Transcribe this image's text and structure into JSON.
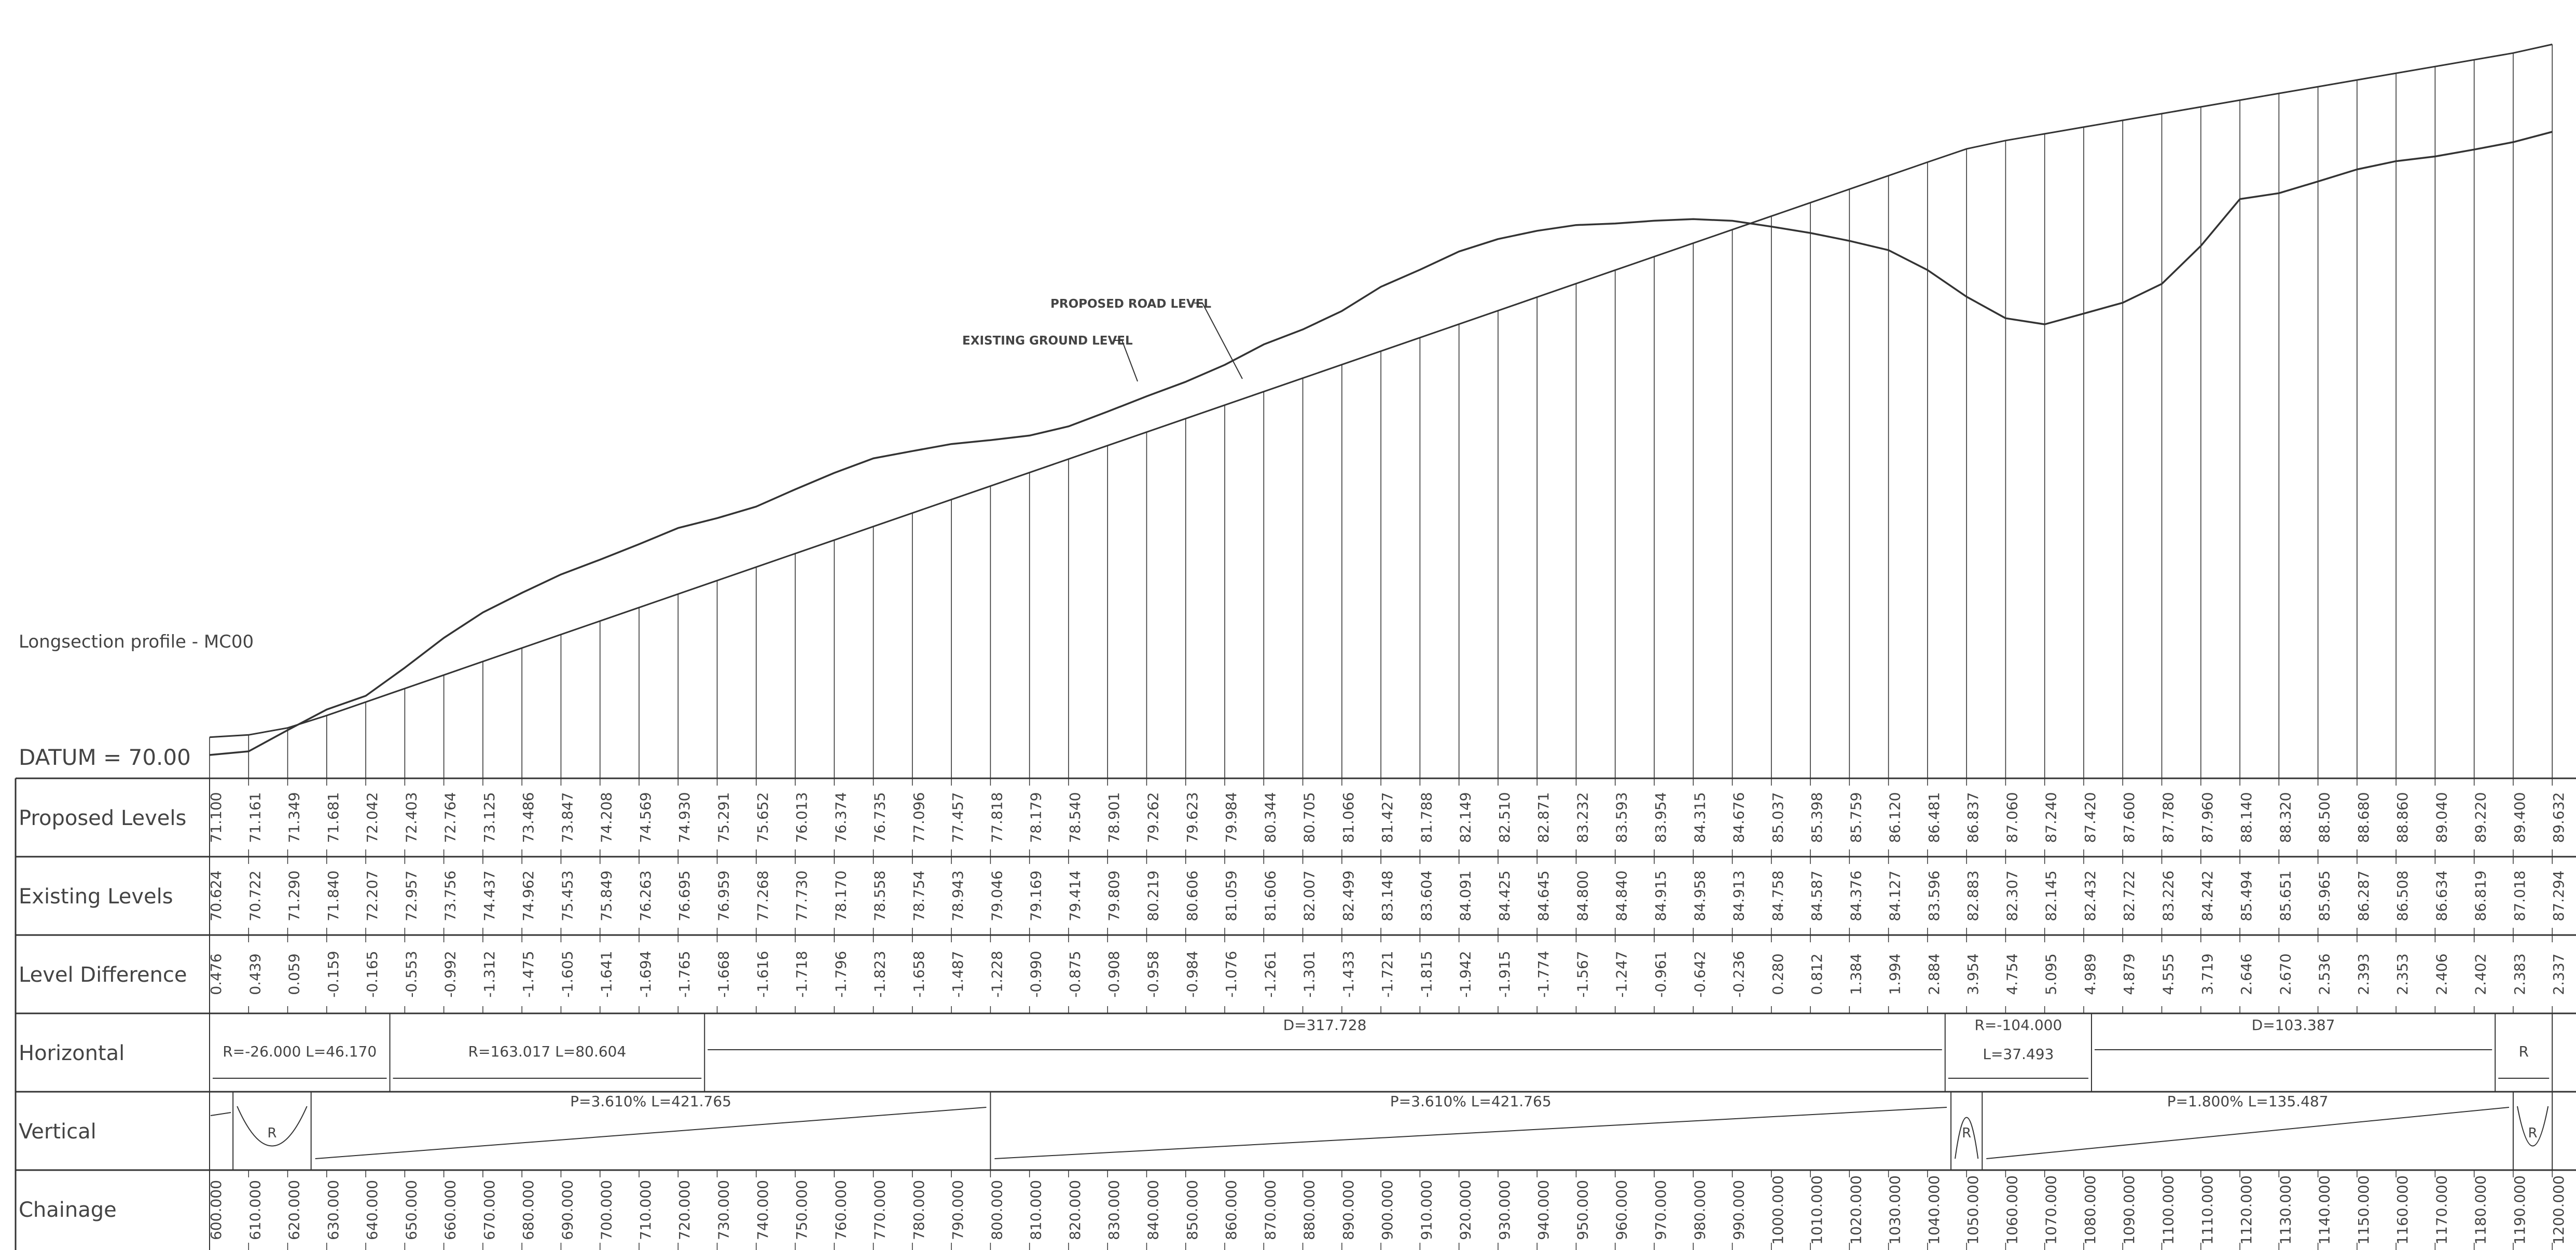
{
  "title": "Longsection profile - MC00",
  "datum_label": "DATUM  =  70.00",
  "annotations": {
    "proposed": "PROPOSED ROAD LEVEL",
    "existing": "EXISTING GROUND LEVEL"
  },
  "rows": {
    "proposed": "Proposed Levels",
    "existing": "Existing Levels",
    "difference": "Level Difference",
    "horizontal": "Horizontal",
    "vertical": "Vertical",
    "chainage": "Chainage"
  },
  "chart_data": {
    "type": "line",
    "datum": 70.0,
    "chainage": [
      "600.000",
      "610.000",
      "620.000",
      "630.000",
      "640.000",
      "650.000",
      "660.000",
      "670.000",
      "680.000",
      "690.000",
      "700.000",
      "710.000",
      "720.000",
      "730.000",
      "740.000",
      "750.000",
      "760.000",
      "770.000",
      "780.000",
      "790.000",
      "800.000",
      "810.000",
      "820.000",
      "830.000",
      "840.000",
      "850.000",
      "860.000",
      "870.000",
      "880.000",
      "890.000",
      "900.000",
      "910.000",
      "920.000",
      "930.000",
      "940.000",
      "950.000",
      "960.000",
      "970.000",
      "980.000",
      "990.000",
      "1000.000",
      "1010.000",
      "1020.000",
      "1030.000",
      "1040.000",
      "1050.000",
      "1060.000",
      "1070.000",
      "1080.000",
      "1090.000",
      "1100.000",
      "1110.000",
      "1120.000",
      "1130.000",
      "1140.000",
      "1150.000",
      "1160.000",
      "1170.000",
      "1180.000",
      "1190.000",
      "1200.000"
    ],
    "proposed_levels": [
      "71.100",
      "71.161",
      "71.349",
      "71.681",
      "72.042",
      "72.403",
      "72.764",
      "73.125",
      "73.486",
      "73.847",
      "74.208",
      "74.569",
      "74.930",
      "75.291",
      "75.652",
      "76.013",
      "76.374",
      "76.735",
      "77.096",
      "77.457",
      "77.818",
      "78.179",
      "78.540",
      "78.901",
      "79.262",
      "79.623",
      "79.984",
      "80.344",
      "80.705",
      "81.066",
      "81.427",
      "81.788",
      "82.149",
      "82.510",
      "82.871",
      "83.232",
      "83.593",
      "83.954",
      "84.315",
      "84.676",
      "85.037",
      "85.398",
      "85.759",
      "86.120",
      "86.481",
      "86.837",
      "87.060",
      "87.240",
      "87.420",
      "87.600",
      "87.780",
      "87.960",
      "88.140",
      "88.320",
      "88.500",
      "88.680",
      "88.860",
      "89.040",
      "89.220",
      "89.400",
      "89.632"
    ],
    "existing_levels": [
      "70.624",
      "70.722",
      "71.290",
      "71.840",
      "72.207",
      "72.957",
      "73.756",
      "74.437",
      "74.962",
      "75.453",
      "75.849",
      "76.263",
      "76.695",
      "76.959",
      "77.268",
      "77.730",
      "78.170",
      "78.558",
      "78.754",
      "78.943",
      "79.046",
      "79.169",
      "79.414",
      "79.809",
      "80.219",
      "80.606",
      "81.059",
      "81.606",
      "82.007",
      "82.499",
      "83.148",
      "83.604",
      "84.091",
      "84.425",
      "84.645",
      "84.800",
      "84.840",
      "84.915",
      "84.958",
      "84.913",
      "84.758",
      "84.587",
      "84.376",
      "84.127",
      "83.596",
      "82.883",
      "82.307",
      "82.145",
      "82.432",
      "82.722",
      "83.226",
      "84.242",
      "85.494",
      "85.651",
      "85.965",
      "86.287",
      "86.508",
      "86.634",
      "86.819",
      "87.018",
      "87.294"
    ],
    "level_difference": [
      "0.476",
      "0.439",
      "0.059",
      "-0.159",
      "-0.165",
      "-0.553",
      "-0.992",
      "-1.312",
      "-1.475",
      "-1.605",
      "-1.641",
      "-1.694",
      "-1.765",
      "-1.668",
      "-1.616",
      "-1.718",
      "-1.796",
      "-1.823",
      "-1.658",
      "-1.487",
      "-1.228",
      "-0.990",
      "-0.875",
      "-0.908",
      "-0.958",
      "-0.984",
      "-1.076",
      "-1.261",
      "-1.301",
      "-1.433",
      "-1.721",
      "-1.815",
      "-1.942",
      "-1.915",
      "-1.774",
      "-1.567",
      "-1.247",
      "-0.961",
      "-0.642",
      "-0.236",
      "0.280",
      "0.812",
      "1.384",
      "1.994",
      "2.884",
      "3.954",
      "4.754",
      "5.095",
      "4.989",
      "4.879",
      "4.555",
      "3.719",
      "2.646",
      "2.670",
      "2.536",
      "2.393",
      "2.353",
      "2.406",
      "2.402",
      "2.383",
      "2.337"
    ],
    "horizontal": [
      {
        "from": 600,
        "to": 646.17,
        "label": "R=-26.000  L=46.170"
      },
      {
        "from": 646.17,
        "to": 726.774,
        "label": "R=163.017  L=80.604"
      },
      {
        "from": 726.774,
        "to": 1044.502,
        "label": "D=317.728"
      },
      {
        "from": 1044.502,
        "to": 1081.995,
        "label1": "R=-104.000",
        "label2": "L=37.493"
      },
      {
        "from": 1081.995,
        "to": 1185.382,
        "label": "D=103.387"
      },
      {
        "from": 1185.382,
        "to": 1200,
        "label": "R"
      }
    ],
    "vertical": [
      {
        "kind": "curve",
        "from": 606,
        "to": 626,
        "shape": "sag",
        "label": "R"
      },
      {
        "kind": "grade",
        "from": 626,
        "to": 800,
        "label": "P=3.610%  L=421.765"
      },
      {
        "kind": "grade",
        "from": 800,
        "to": 1046,
        "label": "P=3.610%  L=421.765"
      },
      {
        "kind": "curve",
        "from": 1046,
        "to": 1054,
        "shape": "crest",
        "label": "R"
      },
      {
        "kind": "grade",
        "from": 1054,
        "to": 1190,
        "label": "P=1.800%  L=135.487"
      },
      {
        "kind": "curve",
        "from": 1190,
        "to": 1200,
        "shape": "sag",
        "label": "R"
      }
    ]
  }
}
